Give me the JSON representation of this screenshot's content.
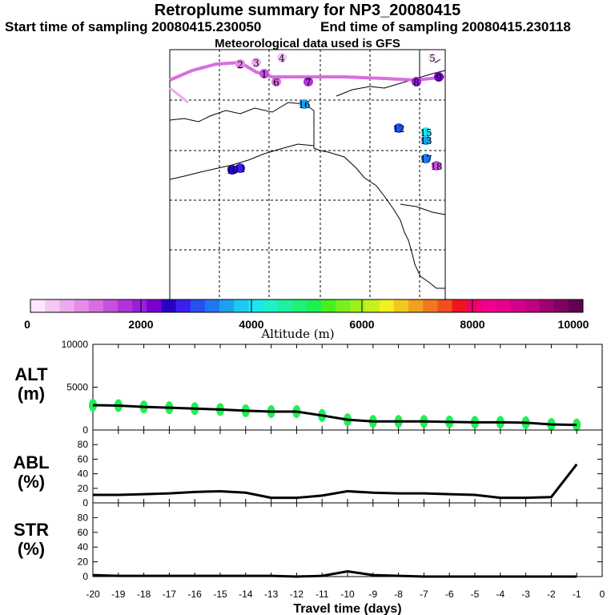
{
  "title": "Retroplume summary for NP3_20080415",
  "start_label": "Start time of sampling 20080415.230050",
  "end_label": "End time of sampling 20080415.230118",
  "met_label": "Meteorological data used is GFS",
  "colorbar": {
    "ticks": [
      "0",
      "2000",
      "4000",
      "6000",
      "8000",
      "10000"
    ],
    "label": "Altitude (m)",
    "colors": [
      "#ffe6ff",
      "#f5c8f5",
      "#eeaaf0",
      "#e68ce8",
      "#d96ee0",
      "#c850dc",
      "#b432dc",
      "#9a1edc",
      "#7a00d2",
      "#2800c8",
      "#3c1ef0",
      "#2850f0",
      "#1e78f0",
      "#1ea0f0",
      "#1ec8f0",
      "#1ee6f0",
      "#1ef0c8",
      "#1ef0a0",
      "#1ef078",
      "#1ef050",
      "#46f01e",
      "#78f01e",
      "#a0f01e",
      "#c8f01e",
      "#f0f01e",
      "#f0c81e",
      "#f0a01e",
      "#f0781e",
      "#f0501e",
      "#f0141e",
      "#f0006e",
      "#f0008c",
      "#e6008c",
      "#d2008c",
      "#be0082",
      "#a0006e",
      "#820064",
      "#640050"
    ]
  },
  "map": {
    "labels": [
      {
        "t": "1",
        "c": "#c850dc"
      },
      {
        "t": "2",
        "c": "#e68ce8"
      },
      {
        "t": "3",
        "c": "#eeaaf0"
      },
      {
        "t": "4",
        "c": "#f5c8f5"
      },
      {
        "t": "5",
        "c": "#ffe6ff"
      },
      {
        "t": "6",
        "c": "#d96ee0"
      },
      {
        "t": "7",
        "c": "#b432dc"
      },
      {
        "t": "8",
        "c": "#9a1edc"
      },
      {
        "t": "9",
        "c": "#7a00d2"
      },
      {
        "t": "10",
        "c": "#2800c8"
      },
      {
        "t": "11",
        "c": "#3c1ef0"
      },
      {
        "t": "12",
        "c": "#2850f0"
      },
      {
        "t": "13",
        "c": "#1ea0f0"
      },
      {
        "t": "15",
        "c": "#1ee6f0"
      },
      {
        "t": "16",
        "c": "#1ea0f0"
      },
      {
        "t": "17",
        "c": "#1e78f0"
      },
      {
        "t": "18",
        "c": "#c850dc"
      }
    ]
  },
  "panels": {
    "alt": {
      "line1": "ALT",
      "line2": "(m)"
    },
    "abl": {
      "line1": "ABL",
      "line2": "(%)"
    },
    "str": {
      "line1": "STR",
      "line2": "(%)"
    }
  },
  "xlabel": "Travel time (days)",
  "chart_data": [
    {
      "type": "line",
      "name": "ALT",
      "x": [
        -20,
        -19,
        -18,
        -17,
        -16,
        -15,
        -14,
        -13,
        -12,
        -11,
        -10,
        -9,
        -8,
        -7,
        -6,
        -5,
        -4,
        -3,
        -2,
        -1
      ],
      "values": [
        2900,
        2850,
        2700,
        2600,
        2500,
        2400,
        2250,
        2150,
        2150,
        1700,
        1200,
        1000,
        1000,
        1000,
        950,
        900,
        900,
        850,
        650,
        600
      ],
      "ylim": [
        0,
        10000
      ],
      "yticks": [
        0,
        5000,
        10000
      ],
      "scatter_color": "#1ef050"
    },
    {
      "type": "line",
      "name": "ABL",
      "x": [
        -20,
        -19,
        -18,
        -17,
        -16,
        -15,
        -14,
        -13,
        -12,
        -11,
        -10,
        -9,
        -8,
        -7,
        -6,
        -5,
        -4,
        -3,
        -2,
        -1
      ],
      "values": [
        11,
        11,
        12,
        13,
        15,
        16,
        14,
        7,
        7,
        10,
        16,
        14,
        13,
        13,
        12,
        11,
        7,
        7,
        8,
        53
      ],
      "ylim": [
        0,
        100
      ],
      "yticks": [
        0,
        20,
        40,
        60,
        80
      ]
    },
    {
      "type": "line",
      "name": "STR",
      "x": [
        -20,
        -19,
        -18,
        -17,
        -16,
        -15,
        -14,
        -13,
        -12,
        -11,
        -10,
        -9,
        -8,
        -7,
        -6,
        -5,
        -4,
        -3,
        -2,
        -1
      ],
      "values": [
        2,
        1,
        1,
        1,
        1,
        1,
        1,
        1,
        0,
        1,
        7,
        2,
        1,
        0,
        0,
        0,
        0,
        0,
        0,
        0
      ],
      "ylim": [
        0,
        100
      ],
      "yticks": [
        0,
        20,
        40,
        60,
        80
      ]
    }
  ],
  "xticks": [
    "-20",
    "-19",
    "-18",
    "-17",
    "-16",
    "-15",
    "-14",
    "-13",
    "-12",
    "-11",
    "-10",
    "-9",
    "-8",
    "-7",
    "-6",
    "-5",
    "-4",
    "-3",
    "-2",
    "-1",
    "0"
  ]
}
